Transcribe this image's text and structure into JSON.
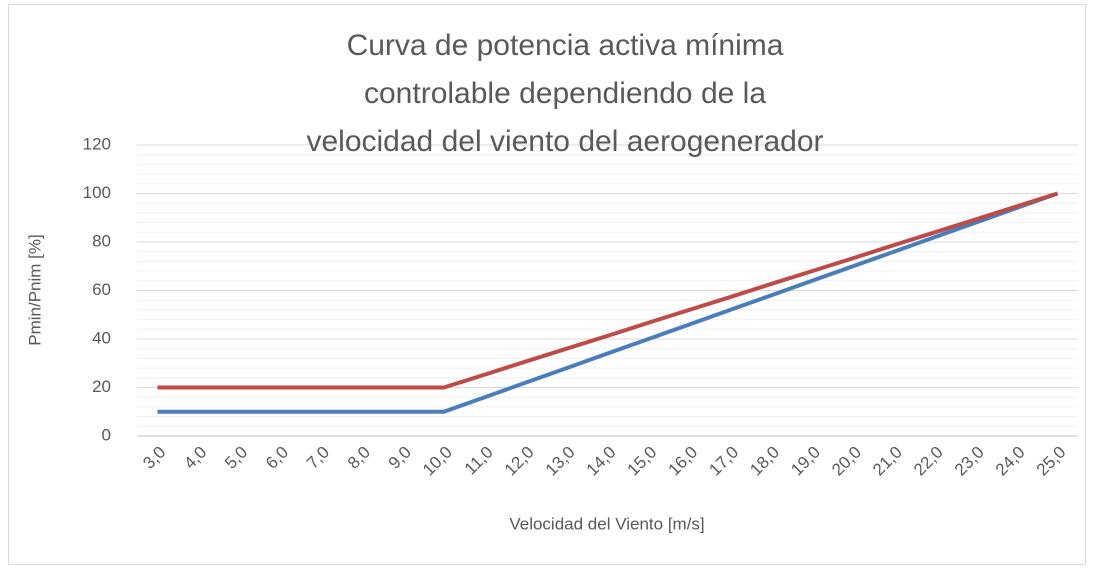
{
  "chart_data": {
    "type": "line",
    "title": "Curva de potencia activa mínima controlable dependiendo de la velocidad del viento del aerogenerador",
    "x_label": "Velocidad del Viento [m/s]",
    "y_label": "Pmin/Pnim [%]",
    "categories": [
      "3,0",
      "4,0",
      "5,0",
      "6,0",
      "7,0",
      "8,0",
      "9,0",
      "10,0",
      "11,0",
      "12,0",
      "13,0",
      "14,0",
      "15,0",
      "16,0",
      "17,0",
      "18,0",
      "19,0",
      "20,0",
      "21,0",
      "22,0",
      "23,0",
      "24,0",
      "25,0"
    ],
    "series": [
      {
        "color": "#4a7ebb",
        "values": [
          10,
          10,
          10,
          10,
          10,
          10,
          10,
          10,
          16,
          22,
          28,
          34,
          40,
          46,
          52,
          58,
          64,
          70,
          76,
          82,
          88,
          94,
          100
        ]
      },
      {
        "color": "#be4b48",
        "values": [
          20,
          20,
          20,
          20,
          20,
          20,
          20,
          20,
          25.3,
          30.7,
          36,
          41.3,
          46.7,
          52,
          57.3,
          62.7,
          68,
          73.3,
          78.7,
          84,
          89.3,
          94.7,
          100
        ]
      }
    ],
    "ylim": [
      0,
      120
    ],
    "yticks": [
      0,
      20,
      40,
      60,
      80,
      100,
      120
    ],
    "grid": true,
    "minor_grid": true
  }
}
